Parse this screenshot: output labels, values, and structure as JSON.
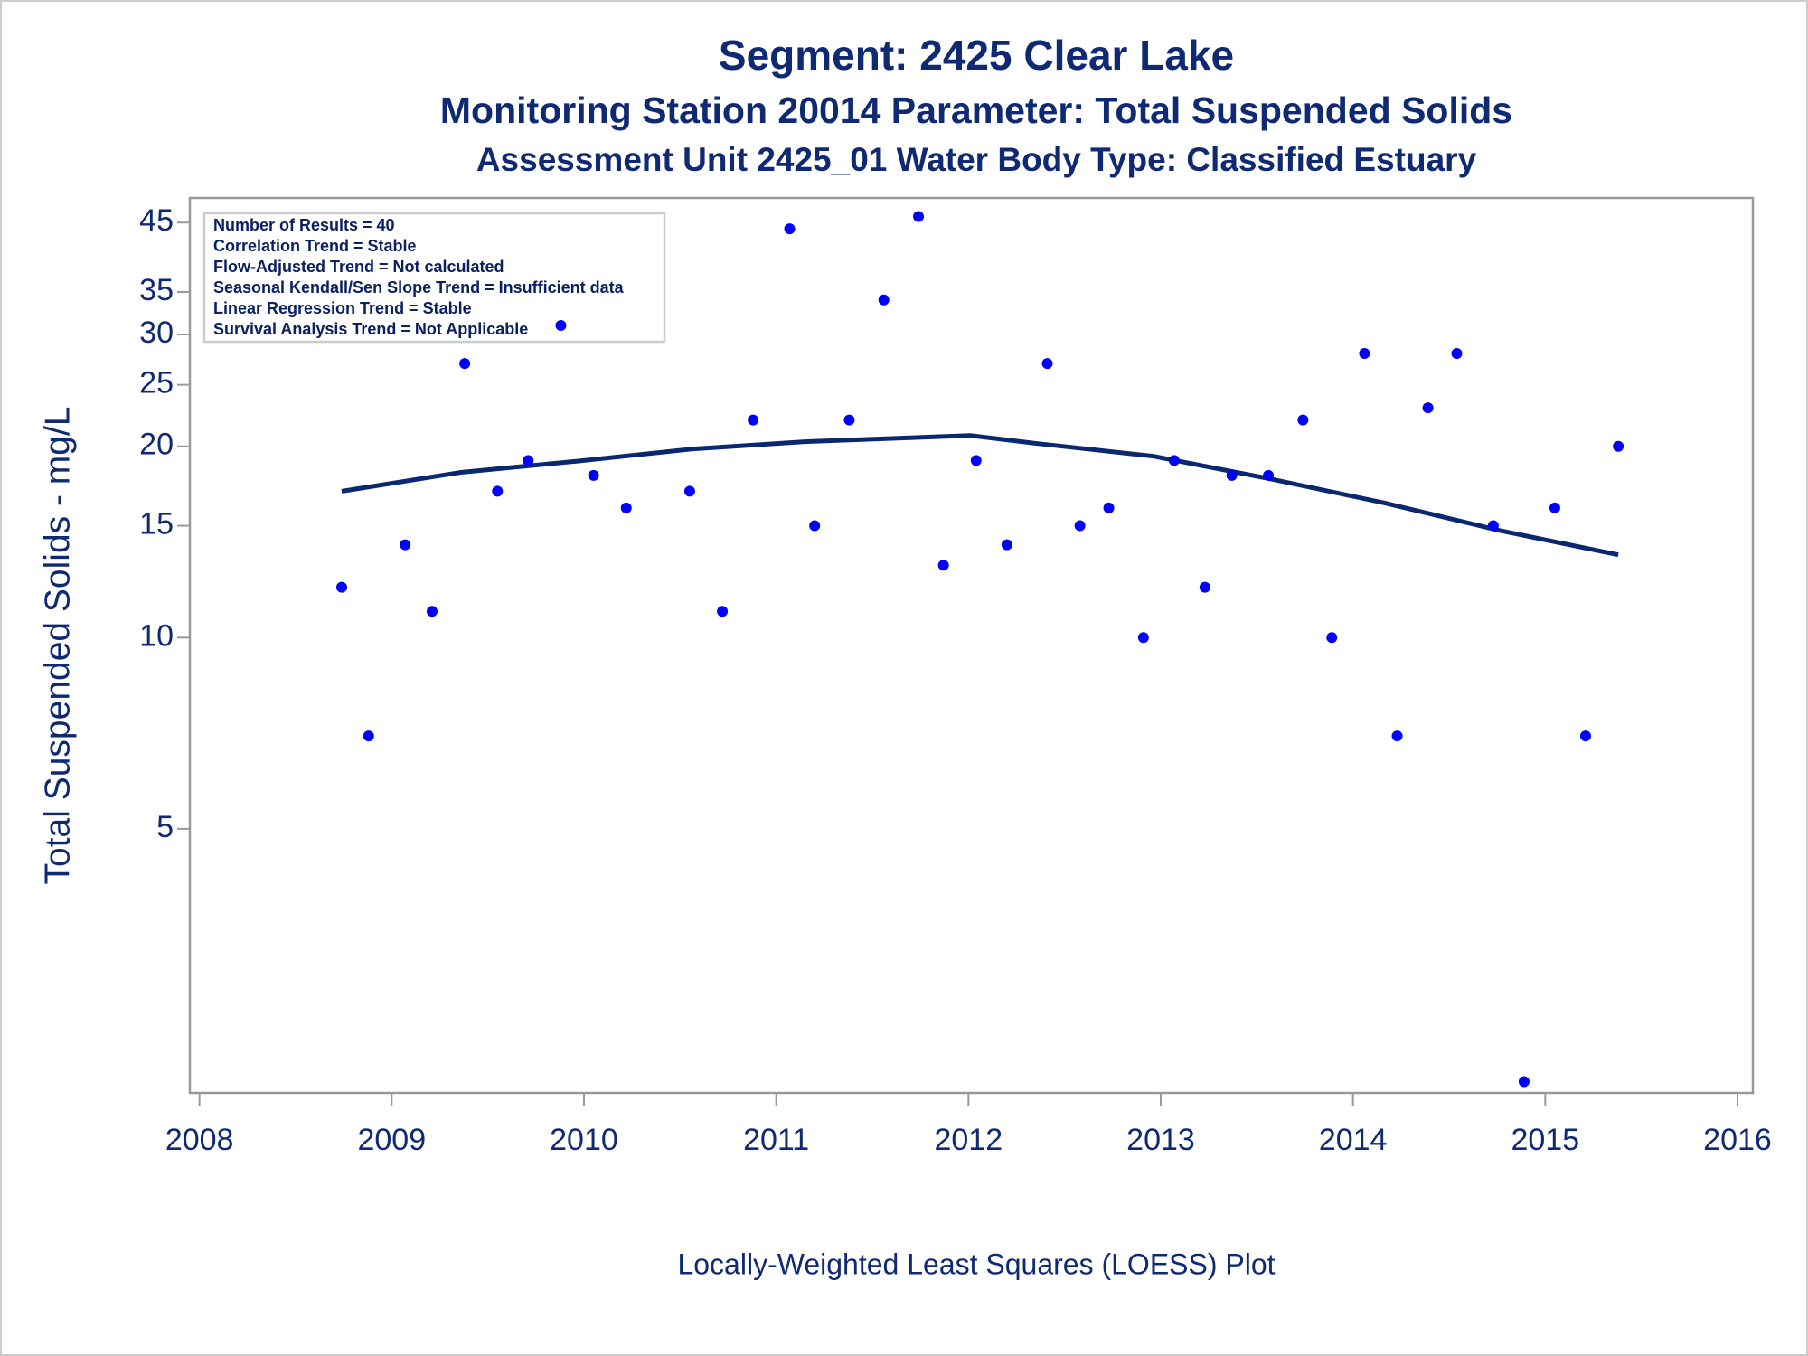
{
  "chart_data": {
    "type": "scatter",
    "title": "Segment: 2425  Clear Lake",
    "subtitle": "Monitoring Station 20014 Parameter: Total Suspended Solids",
    "subtitle2": "Assessment Unit 2425_01   Water Body Type: Classified Estuary",
    "xlabel": "Locally-Weighted Least Squares (LOESS) Plot",
    "ylabel": "Total Suspended Solids - mg/L",
    "annotations": [
      "Number of Results = 40",
      "Correlation Trend = Stable",
      "Flow-Adjusted Trend = Not calculated",
      "Seasonal Kendall/Sen Slope Trend = Insufficient data",
      "Linear Regression Trend = Stable",
      "Survival Analysis Trend = Not Applicable"
    ],
    "xlim": [
      2007.95,
      2016.08
    ],
    "xticks": [
      2008,
      2009,
      2010,
      2011,
      2012,
      2013,
      2014,
      2015,
      2016
    ],
    "ylim": [
      1.92,
      49.2
    ],
    "yticks": [
      5,
      10,
      15,
      20,
      25,
      30,
      35,
      45
    ],
    "ylog": true,
    "series": [
      {
        "type": "scatter",
        "color": "#0000ff",
        "x": [
          2008.74,
          2008.88,
          2009.07,
          2009.21,
          2009.38,
          2009.55,
          2009.71,
          2009.88,
          2010.05,
          2010.22,
          2010.55,
          2010.72,
          2010.88,
          2011.07,
          2011.2,
          2011.38,
          2011.56,
          2011.74,
          2011.87,
          2012.04,
          2012.2,
          2012.41,
          2012.58,
          2012.73,
          2012.91,
          2013.07,
          2013.23,
          2013.37,
          2013.56,
          2013.74,
          2013.89,
          2014.06,
          2014.23,
          2014.39,
          2014.54,
          2014.73,
          2014.89,
          2015.05,
          2015.21,
          2015.38
        ],
        "values": [
          12,
          7,
          14,
          11,
          27,
          17,
          19,
          31,
          18,
          16,
          17,
          11,
          22,
          44,
          15,
          22,
          34,
          46,
          13,
          19,
          14,
          27,
          15,
          16,
          10,
          19,
          12,
          18,
          18,
          22,
          10,
          28,
          7,
          23,
          28,
          15,
          2,
          16,
          7,
          20
        ]
      },
      {
        "type": "line",
        "color": "#0a2870",
        "x": [
          2008.74,
          2009.36,
          2009.96,
          2010.56,
          2011.16,
          2012.01,
          2012.36,
          2012.96,
          2013.56,
          2014.16,
          2014.76,
          2015.38
        ],
        "values": [
          17.0,
          18.2,
          18.95,
          19.8,
          20.35,
          20.8,
          20.2,
          19.3,
          17.8,
          16.3,
          14.75,
          13.5
        ]
      }
    ]
  }
}
